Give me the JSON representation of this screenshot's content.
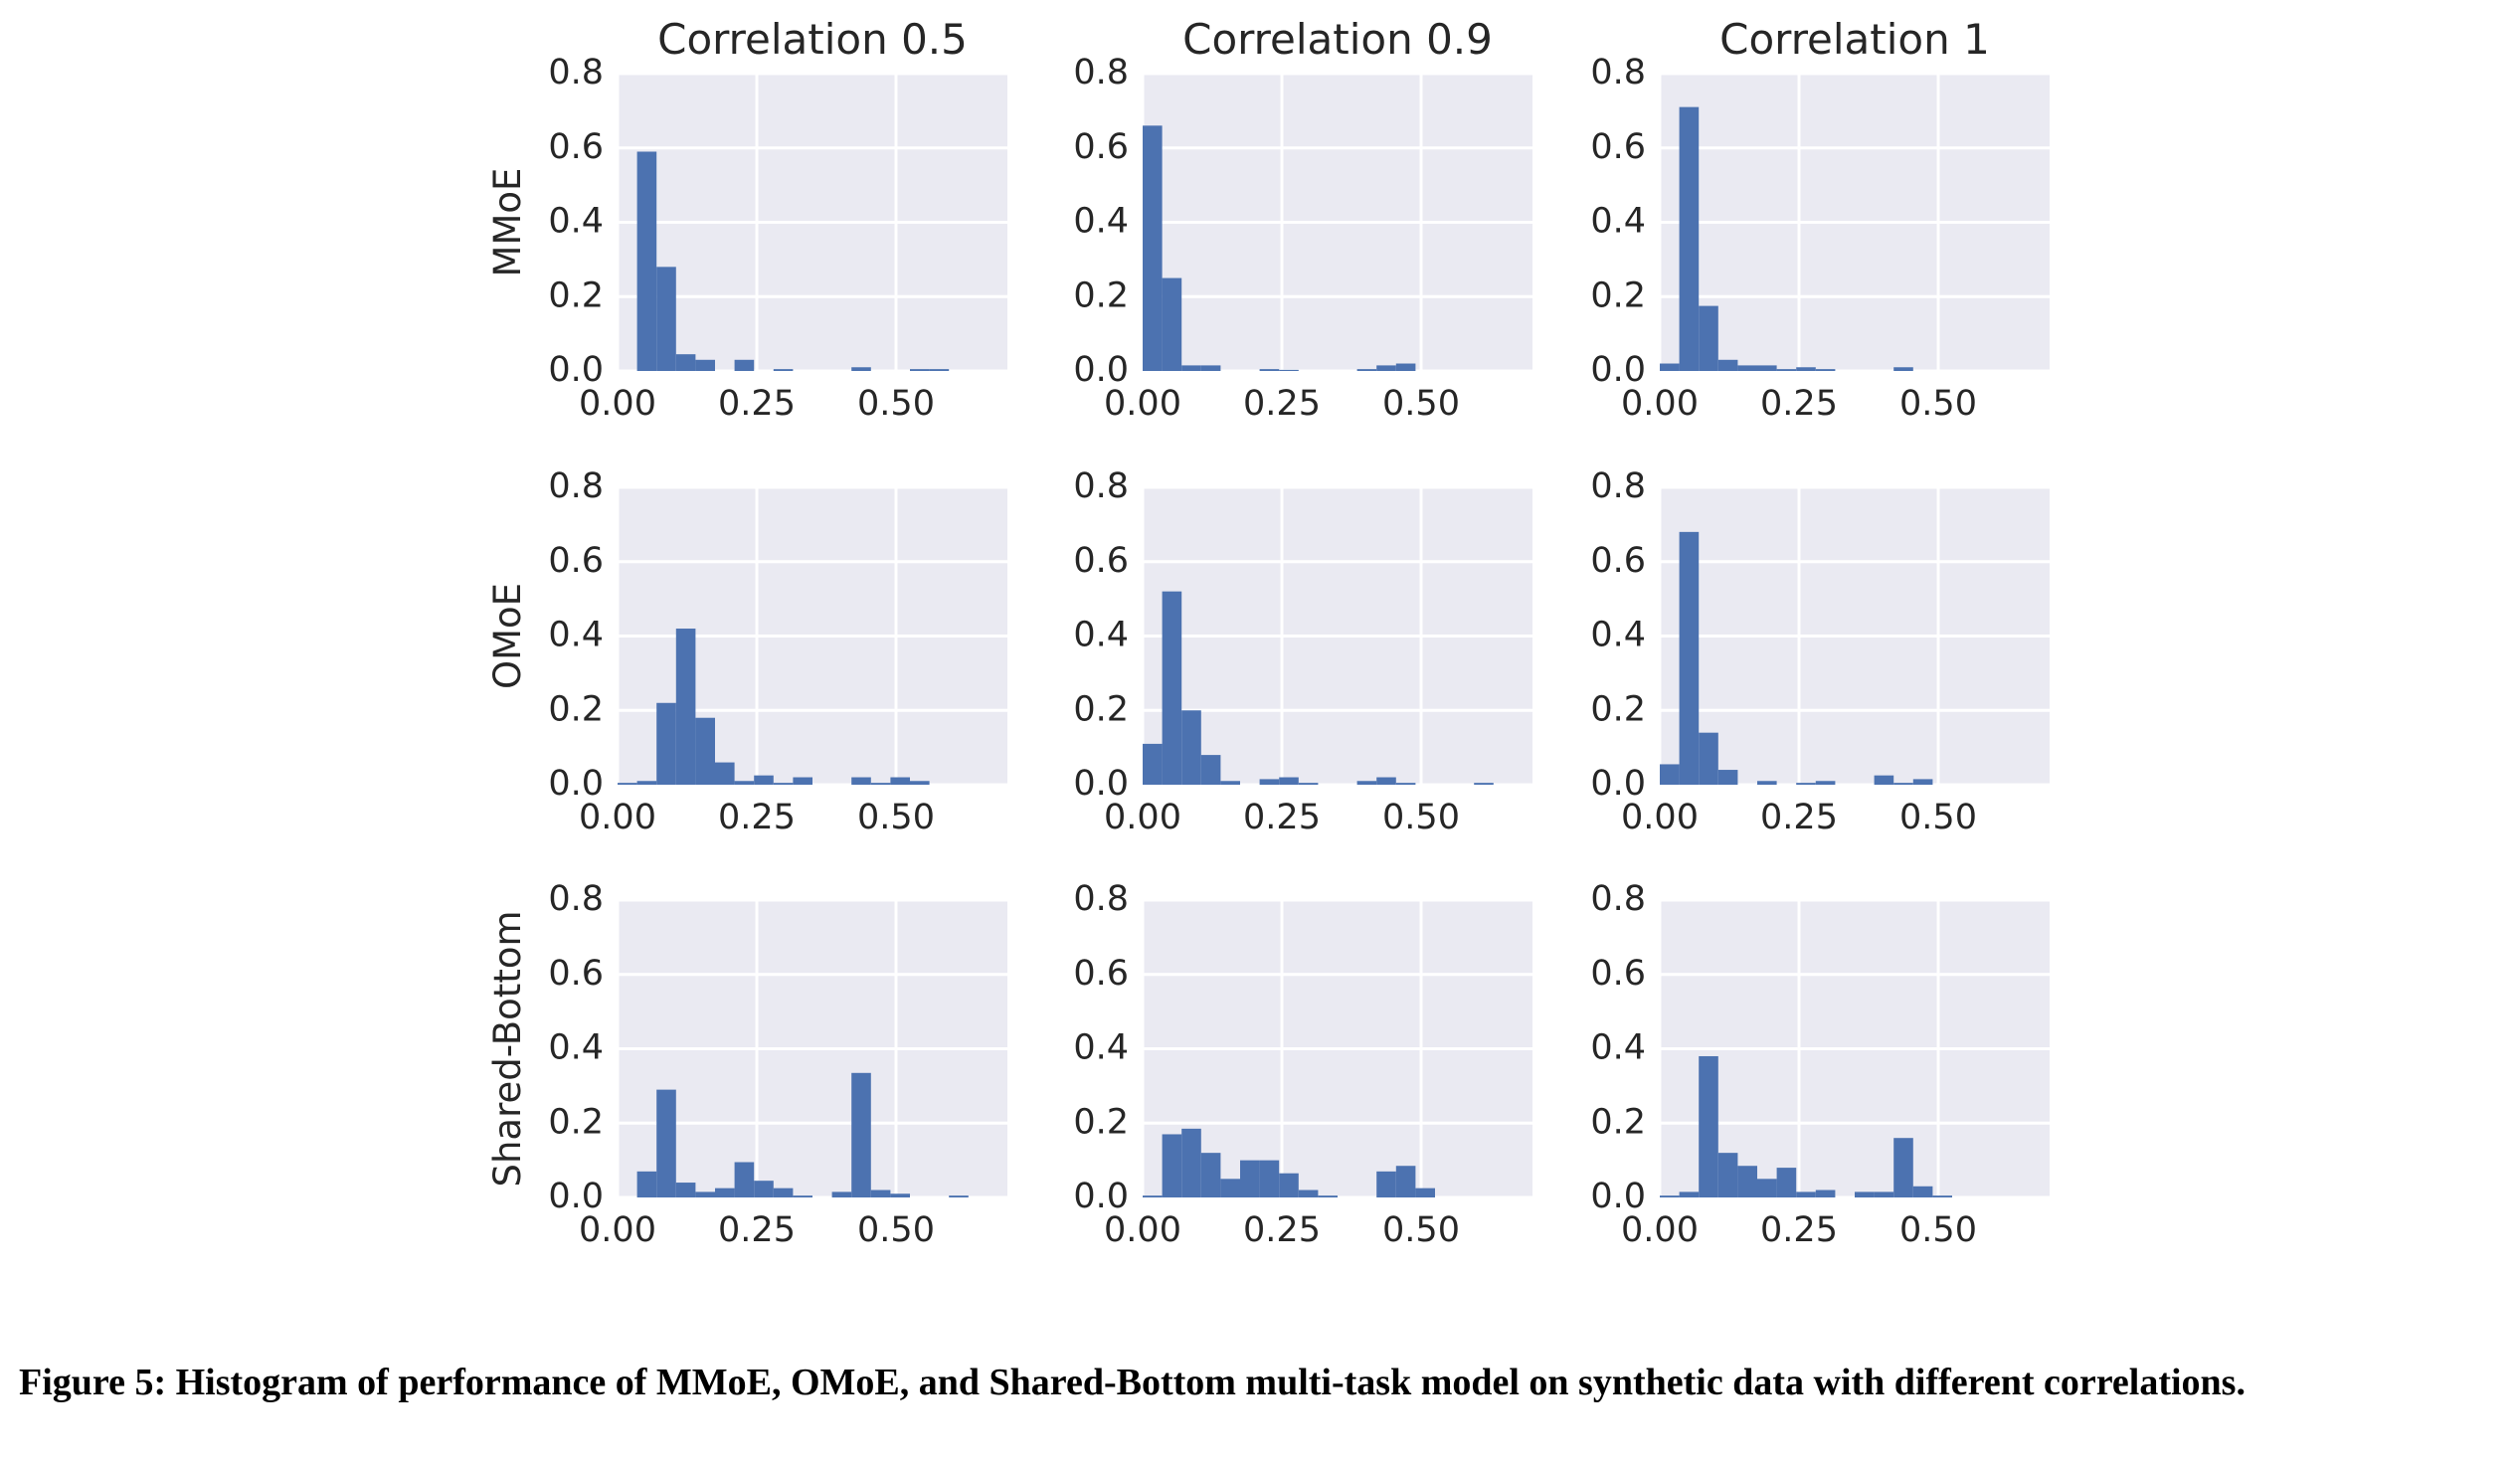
{
  "chart_data": [
    {
      "type": "histogram",
      "title": "Correlation 0.5",
      "ylabel": "MMoE",
      "color": "#4c72b0",
      "grid": true,
      "bins": [
        0,
        0.035,
        0.07,
        0.105,
        0.14,
        0.175,
        0.21,
        0.245,
        0.28,
        0.315,
        0.35,
        0.385,
        0.42,
        0.455,
        0.49,
        0.525,
        0.56,
        0.595,
        0.63,
        0.665,
        0.7
      ],
      "values": [
        0,
        0.59,
        0.28,
        0.045,
        0.03,
        0,
        0.03,
        0,
        0.005,
        0,
        0,
        0,
        0.01,
        0,
        0,
        0.005,
        0.005,
        0,
        0,
        0
      ],
      "xlim": [
        0,
        0.7
      ],
      "ylim": [
        0,
        0.8
      ],
      "xticks": [
        {
          "value": 0,
          "label": "0.00"
        },
        {
          "value": 0.25,
          "label": "0.25"
        },
        {
          "value": 0.5,
          "label": "0.50"
        }
      ],
      "yticks": [
        {
          "value": 0,
          "label": "0.0"
        },
        {
          "value": 0.2,
          "label": "0.2"
        },
        {
          "value": 0.4,
          "label": "0.4"
        },
        {
          "value": 0.6,
          "label": "0.6"
        },
        {
          "value": 0.8,
          "label": "0.8"
        }
      ]
    },
    {
      "type": "histogram",
      "title": "Correlation 0.9",
      "color": "#4c72b0",
      "grid": true,
      "bins": [
        0,
        0.035,
        0.07,
        0.105,
        0.14,
        0.175,
        0.21,
        0.245,
        0.28,
        0.315,
        0.35,
        0.385,
        0.42,
        0.455,
        0.49,
        0.525,
        0.56,
        0.595,
        0.63,
        0.665,
        0.7
      ],
      "values": [
        0.66,
        0.25,
        0.015,
        0.015,
        0,
        0,
        0.005,
        0.003,
        0,
        0,
        0,
        0.005,
        0.015,
        0.02,
        0,
        0,
        0,
        0,
        0,
        0
      ],
      "xlim": [
        0,
        0.7
      ],
      "ylim": [
        0,
        0.8
      ],
      "xticks": [
        {
          "value": 0,
          "label": "0.00"
        },
        {
          "value": 0.25,
          "label": "0.25"
        },
        {
          "value": 0.5,
          "label": "0.50"
        }
      ],
      "yticks": [
        {
          "value": 0,
          "label": "0.0"
        },
        {
          "value": 0.2,
          "label": "0.2"
        },
        {
          "value": 0.4,
          "label": "0.4"
        },
        {
          "value": 0.6,
          "label": "0.6"
        },
        {
          "value": 0.8,
          "label": "0.8"
        }
      ]
    },
    {
      "type": "histogram",
      "title": "Correlation 1",
      "color": "#4c72b0",
      "grid": true,
      "bins": [
        0,
        0.035,
        0.07,
        0.105,
        0.14,
        0.175,
        0.21,
        0.245,
        0.28,
        0.315,
        0.35,
        0.385,
        0.42,
        0.455,
        0.49,
        0.525,
        0.56,
        0.595,
        0.63,
        0.665,
        0.7
      ],
      "values": [
        0.02,
        0.71,
        0.175,
        0.03,
        0.015,
        0.015,
        0.005,
        0.01,
        0.005,
        0,
        0,
        0,
        0.01,
        0,
        0,
        0,
        0,
        0,
        0,
        0
      ],
      "xlim": [
        0,
        0.7
      ],
      "ylim": [
        0,
        0.8
      ],
      "xticks": [
        {
          "value": 0,
          "label": "0.00"
        },
        {
          "value": 0.25,
          "label": "0.25"
        },
        {
          "value": 0.5,
          "label": "0.50"
        }
      ],
      "yticks": [
        {
          "value": 0,
          "label": "0.0"
        },
        {
          "value": 0.2,
          "label": "0.2"
        },
        {
          "value": 0.4,
          "label": "0.4"
        },
        {
          "value": 0.6,
          "label": "0.6"
        },
        {
          "value": 0.8,
          "label": "0.8"
        }
      ]
    },
    {
      "type": "histogram",
      "ylabel": "OMoE",
      "color": "#4c72b0",
      "grid": true,
      "bins": [
        0,
        0.035,
        0.07,
        0.105,
        0.14,
        0.175,
        0.21,
        0.245,
        0.28,
        0.315,
        0.35,
        0.385,
        0.42,
        0.455,
        0.49,
        0.525,
        0.56,
        0.595,
        0.63,
        0.665,
        0.7
      ],
      "values": [
        0.005,
        0.01,
        0.22,
        0.42,
        0.18,
        0.06,
        0.01,
        0.025,
        0.005,
        0.02,
        0,
        0,
        0.02,
        0.005,
        0.02,
        0.01,
        0,
        0,
        0,
        0
      ],
      "xlim": [
        0,
        0.7
      ],
      "ylim": [
        0,
        0.8
      ],
      "xticks": [
        {
          "value": 0,
          "label": "0.00"
        },
        {
          "value": 0.25,
          "label": "0.25"
        },
        {
          "value": 0.5,
          "label": "0.50"
        }
      ],
      "yticks": [
        {
          "value": 0,
          "label": "0.0"
        },
        {
          "value": 0.2,
          "label": "0.2"
        },
        {
          "value": 0.4,
          "label": "0.4"
        },
        {
          "value": 0.6,
          "label": "0.6"
        },
        {
          "value": 0.8,
          "label": "0.8"
        }
      ]
    },
    {
      "type": "histogram",
      "color": "#4c72b0",
      "grid": true,
      "bins": [
        0,
        0.035,
        0.07,
        0.105,
        0.14,
        0.175,
        0.21,
        0.245,
        0.28,
        0.315,
        0.35,
        0.385,
        0.42,
        0.455,
        0.49,
        0.525,
        0.56,
        0.595,
        0.63,
        0.665,
        0.7
      ],
      "values": [
        0.11,
        0.52,
        0.2,
        0.08,
        0.01,
        0,
        0.015,
        0.02,
        0.005,
        0,
        0,
        0.01,
        0.02,
        0.005,
        0,
        0,
        0,
        0.005,
        0,
        0
      ],
      "xlim": [
        0,
        0.7
      ],
      "ylim": [
        0,
        0.8
      ],
      "xticks": [
        {
          "value": 0,
          "label": "0.00"
        },
        {
          "value": 0.25,
          "label": "0.25"
        },
        {
          "value": 0.5,
          "label": "0.50"
        }
      ],
      "yticks": [
        {
          "value": 0,
          "label": "0.0"
        },
        {
          "value": 0.2,
          "label": "0.2"
        },
        {
          "value": 0.4,
          "label": "0.4"
        },
        {
          "value": 0.6,
          "label": "0.6"
        },
        {
          "value": 0.8,
          "label": "0.8"
        }
      ]
    },
    {
      "type": "histogram",
      "color": "#4c72b0",
      "grid": true,
      "bins": [
        0,
        0.035,
        0.07,
        0.105,
        0.14,
        0.175,
        0.21,
        0.245,
        0.28,
        0.315,
        0.35,
        0.385,
        0.42,
        0.455,
        0.49,
        0.525,
        0.56,
        0.595,
        0.63,
        0.665,
        0.7
      ],
      "values": [
        0.055,
        0.68,
        0.14,
        0.04,
        0,
        0.01,
        0,
        0.005,
        0.01,
        0,
        0,
        0.025,
        0.005,
        0.015,
        0,
        0,
        0,
        0,
        0,
        0
      ],
      "xlim": [
        0,
        0.7
      ],
      "ylim": [
        0,
        0.8
      ],
      "xticks": [
        {
          "value": 0,
          "label": "0.00"
        },
        {
          "value": 0.25,
          "label": "0.25"
        },
        {
          "value": 0.5,
          "label": "0.50"
        }
      ],
      "yticks": [
        {
          "value": 0,
          "label": "0.0"
        },
        {
          "value": 0.2,
          "label": "0.2"
        },
        {
          "value": 0.4,
          "label": "0.4"
        },
        {
          "value": 0.6,
          "label": "0.6"
        },
        {
          "value": 0.8,
          "label": "0.8"
        }
      ]
    },
    {
      "type": "histogram",
      "ylabel": "Shared-Bottom",
      "color": "#4c72b0",
      "grid": true,
      "bins": [
        0,
        0.035,
        0.07,
        0.105,
        0.14,
        0.175,
        0.21,
        0.245,
        0.28,
        0.315,
        0.35,
        0.385,
        0.42,
        0.455,
        0.49,
        0.525,
        0.56,
        0.595,
        0.63,
        0.665,
        0.7
      ],
      "values": [
        0,
        0.07,
        0.29,
        0.04,
        0.015,
        0.025,
        0.095,
        0.045,
        0.025,
        0.005,
        0,
        0.015,
        0.335,
        0.02,
        0.01,
        0,
        0,
        0.005,
        0,
        0
      ],
      "xlim": [
        0,
        0.7
      ],
      "ylim": [
        0,
        0.8
      ],
      "xticks": [
        {
          "value": 0,
          "label": "0.00"
        },
        {
          "value": 0.25,
          "label": "0.25"
        },
        {
          "value": 0.5,
          "label": "0.50"
        }
      ],
      "yticks": [
        {
          "value": 0,
          "label": "0.0"
        },
        {
          "value": 0.2,
          "label": "0.2"
        },
        {
          "value": 0.4,
          "label": "0.4"
        },
        {
          "value": 0.6,
          "label": "0.6"
        },
        {
          "value": 0.8,
          "label": "0.8"
        }
      ]
    },
    {
      "type": "histogram",
      "color": "#4c72b0",
      "grid": true,
      "bins": [
        0,
        0.035,
        0.07,
        0.105,
        0.14,
        0.175,
        0.21,
        0.245,
        0.28,
        0.315,
        0.35,
        0.385,
        0.42,
        0.455,
        0.49,
        0.525,
        0.56,
        0.595,
        0.63,
        0.665,
        0.7
      ],
      "values": [
        0.005,
        0.17,
        0.185,
        0.12,
        0.05,
        0.1,
        0.1,
        0.065,
        0.02,
        0.005,
        0,
        0,
        0.07,
        0.085,
        0.025,
        0,
        0,
        0,
        0,
        0
      ],
      "xlim": [
        0,
        0.7
      ],
      "ylim": [
        0,
        0.8
      ],
      "xticks": [
        {
          "value": 0,
          "label": "0.00"
        },
        {
          "value": 0.25,
          "label": "0.25"
        },
        {
          "value": 0.5,
          "label": "0.50"
        }
      ],
      "yticks": [
        {
          "value": 0,
          "label": "0.0"
        },
        {
          "value": 0.2,
          "label": "0.2"
        },
        {
          "value": 0.4,
          "label": "0.4"
        },
        {
          "value": 0.6,
          "label": "0.6"
        },
        {
          "value": 0.8,
          "label": "0.8"
        }
      ]
    },
    {
      "type": "histogram",
      "color": "#4c72b0",
      "grid": true,
      "bins": [
        0,
        0.035,
        0.07,
        0.105,
        0.14,
        0.175,
        0.21,
        0.245,
        0.28,
        0.315,
        0.35,
        0.385,
        0.42,
        0.455,
        0.49,
        0.525,
        0.56,
        0.595,
        0.63,
        0.665,
        0.7
      ],
      "values": [
        0.005,
        0.015,
        0.38,
        0.12,
        0.085,
        0.05,
        0.08,
        0.015,
        0.02,
        0,
        0.015,
        0.015,
        0.16,
        0.03,
        0.005,
        0,
        0,
        0,
        0,
        0
      ],
      "xlim": [
        0,
        0.7
      ],
      "ylim": [
        0,
        0.8
      ],
      "xticks": [
        {
          "value": 0,
          "label": "0.00"
        },
        {
          "value": 0.25,
          "label": "0.25"
        },
        {
          "value": 0.5,
          "label": "0.50"
        }
      ],
      "yticks": [
        {
          "value": 0,
          "label": "0.0"
        },
        {
          "value": 0.2,
          "label": "0.2"
        },
        {
          "value": 0.4,
          "label": "0.4"
        },
        {
          "value": 0.6,
          "label": "0.6"
        },
        {
          "value": 0.8,
          "label": "0.8"
        }
      ]
    }
  ],
  "caption": "Figure 5: Histogram of performance of MMoE, OMoE, and Shared-Bottom multi-task model on synthetic data with different correlations."
}
